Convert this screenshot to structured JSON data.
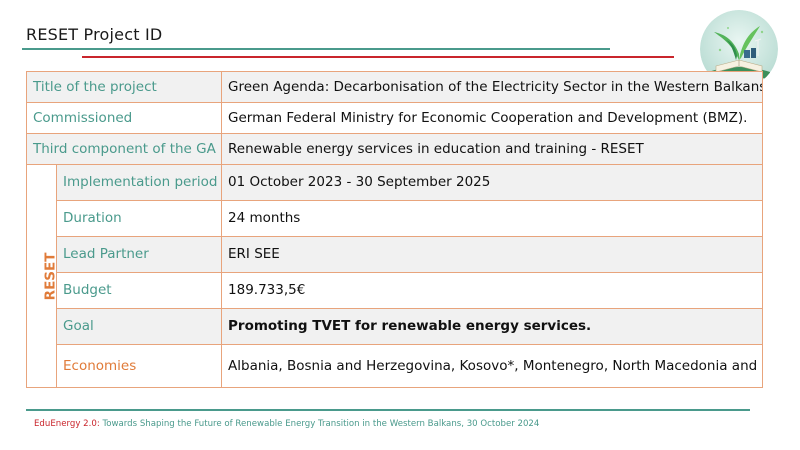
{
  "slide": {
    "title": "RESET Project ID"
  },
  "table": {
    "title_row": {
      "label": "Title of the project",
      "value": "Green Agenda: Decarbonisation of the Electricity Sector in the Western Balkans"
    },
    "commissioned_row": {
      "label": "Commissioned",
      "value": "German Federal Ministry for Economic Cooperation and Development (BMZ)."
    },
    "component_row": {
      "label": "Third component of the GA",
      "value": "Renewable energy services in education and training - RESET"
    },
    "group_label": "RESET",
    "sub_rows": [
      {
        "label": "Implementation period",
        "value": "01 October 2023 - 30 September 2025"
      },
      {
        "label": "Duration",
        "value": "24 months"
      },
      {
        "label": "Lead Partner",
        "value": "ERI SEE"
      },
      {
        "label": "Budget",
        "value": "189.733,5€"
      },
      {
        "label": "Goal",
        "value": "Promoting TVET for renewable energy services."
      },
      {
        "label": "Economies",
        "value": "Albania, Bosnia and Herzegovina, Kosovo*, Montenegro, North Macedonia and Serbia"
      }
    ]
  },
  "footer": {
    "event_name": "EduEnergy 2.0:",
    "event_desc": " Towards Shaping the Future of Renewable Energy Transition in the Western Balkans, 30 October 2024"
  },
  "colors": {
    "teal": "#4a9a8c",
    "orange": "#e07b39",
    "red": "#c9252c",
    "border": "#e8a47c"
  },
  "icons": {
    "logo": "green-energy-book-illustration"
  }
}
